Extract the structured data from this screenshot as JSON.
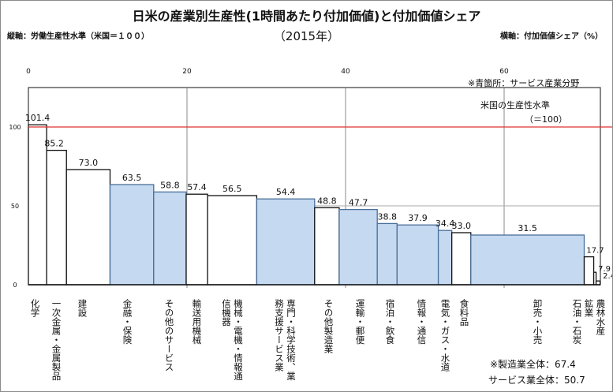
{
  "chart_data": {
    "type": "bar",
    "variant": "variable-width (marimekko)",
    "title": "日米の産業別生産性(1時間あたり付加価値)と付加価値シェア",
    "subtitle": "（2015年）",
    "ylabel": "縦軸：労働生産性水準（米国＝１００）",
    "xlabel": "横軸：付加価値シェア（%）",
    "xticks": [
      0,
      20,
      40,
      60
    ],
    "yticks": [
      0,
      50,
      100
    ],
    "xlim": [
      0,
      72.1
    ],
    "ylim": [
      0,
      125
    ],
    "grid": true,
    "reference_line": {
      "value": 100,
      "color": "#e03030"
    },
    "colors": {
      "service": "#c5d9f1",
      "service_border": "#4a6f9a",
      "other": "#ffffff",
      "other_border": "#111111"
    },
    "categories": [
      "化学",
      "一次金属・金属製品",
      "建設",
      "金融・保険",
      "その他のサービス",
      "輸送用機械",
      "機械・電機・情報通信機器",
      "専門・科学技術、業務支援サービス業",
      "その他製造業",
      "運輸・郵便",
      "宿泊・飲食",
      "情報・通信",
      "電気・ガス・水道",
      "食料品",
      "卸売・小売",
      "石油・石炭",
      "鉱業",
      "農林水産"
    ],
    "values": [
      101.4,
      85.2,
      73.0,
      63.5,
      58.8,
      57.4,
      56.5,
      54.4,
      48.8,
      47.7,
      38.8,
      37.9,
      34.4,
      33.0,
      31.5,
      17.7,
      7.9,
      2.4
    ],
    "value_labels": [
      "101.4",
      "85.2",
      "73.0",
      "63.5",
      "58.8",
      "57.4",
      "56.5",
      "54.4",
      "48.8",
      "47.7",
      "38.8",
      "37.9",
      "34.4",
      "33.0",
      "31.5",
      "17.7",
      "7.9",
      "2.4"
    ],
    "shares": [
      2.3,
      2.5,
      5.5,
      5.5,
      4.1,
      2.7,
      6.2,
      7.3,
      3.1,
      4.8,
      2.5,
      5.2,
      1.7,
      2.4,
      14.3,
      1.2,
      0.3,
      0.5
    ],
    "service": [
      false,
      false,
      false,
      true,
      true,
      false,
      false,
      true,
      false,
      true,
      true,
      true,
      true,
      false,
      true,
      false,
      false,
      false
    ]
  },
  "annotations": {
    "blue_note": "※青箇所：サービス産業分野",
    "us_level": "米国の生産性水準",
    "us_level_value": "（＝100）",
    "manufacturing_total": "※製造業全体：67.4",
    "service_total": "サービス業全体：50.7"
  }
}
